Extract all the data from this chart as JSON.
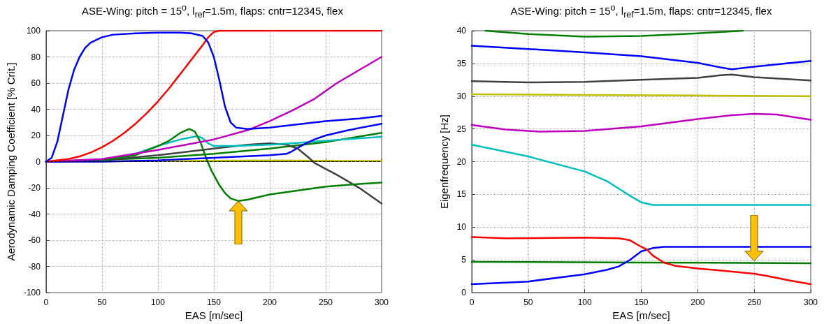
{
  "chart_data": [
    {
      "type": "line",
      "title": "ASE-Wing: pitch = 15$^{o}$, l$_{ref}$=1.5m, flaps: cntr=12345, flex",
      "xlabel": "EAS [m/sec]",
      "ylabel": "Aerodynamic Damping Coefficient [% Crit.]",
      "xlim": [
        0,
        300
      ],
      "xticks": [
        0,
        50,
        100,
        150,
        200,
        250,
        300
      ],
      "ylim": [
        -100,
        100
      ],
      "yticks": [
        -100,
        -80,
        -60,
        -40,
        -20,
        0,
        20,
        40,
        60,
        80,
        100
      ],
      "grid": true,
      "marker": "none",
      "line_style": "solid",
      "ref_lines": [
        {
          "axis": "y",
          "value": 0,
          "color": "#000000",
          "line_style": "dashed"
        }
      ],
      "series": [
        {
          "color": "#0000ff",
          "x": [
            0,
            5,
            10,
            15,
            20,
            25,
            30,
            35,
            40,
            50,
            60,
            80,
            100,
            120,
            130,
            140,
            145,
            150,
            155,
            160,
            165,
            170,
            180,
            200,
            220,
            250,
            280,
            300
          ],
          "values": [
            0,
            3,
            15,
            35,
            55,
            70,
            80,
            87,
            91,
            95,
            97,
            98,
            98.5,
            98.5,
            98,
            96,
            91,
            80,
            62,
            42,
            30,
            26,
            25,
            26,
            28,
            31,
            33,
            35
          ]
        },
        {
          "color": "#ff0000",
          "x": [
            0,
            20,
            30,
            40,
            50,
            60,
            70,
            80,
            90,
            100,
            110,
            120,
            130,
            140,
            145,
            150,
            155,
            200,
            300
          ],
          "values": [
            0,
            2,
            4,
            7,
            11,
            16,
            22,
            29,
            37,
            46,
            56,
            67,
            78,
            89,
            95,
            99,
            100,
            100,
            100
          ]
        },
        {
          "color": "#bf00bf",
          "x": [
            0,
            50,
            100,
            150,
            180,
            200,
            220,
            240,
            260,
            280,
            300
          ],
          "values": [
            0,
            2,
            9,
            17,
            24,
            31,
            39,
            48,
            60,
            70,
            80
          ]
        },
        {
          "color": "#0000ff",
          "x": [
            0,
            50,
            100,
            150,
            200,
            215,
            220,
            230,
            240,
            250,
            270,
            300
          ],
          "values": [
            0,
            0,
            1,
            3,
            5,
            6,
            8,
            13,
            17,
            20,
            24,
            29
          ]
        },
        {
          "color": "#007f00",
          "x": [
            0,
            50,
            80,
            100,
            110,
            120,
            128,
            133,
            138,
            143,
            148,
            155,
            160,
            165,
            172,
            180,
            200,
            250,
            280,
            300
          ],
          "values": [
            0,
            1,
            5,
            12,
            16,
            22,
            25,
            23,
            15,
            3,
            -7,
            -18,
            -24,
            -28,
            -30,
            -29,
            -25,
            -19,
            -17,
            -16
          ]
        },
        {
          "color": "#00bfbf",
          "x": [
            0,
            50,
            80,
            100,
            120,
            135,
            140,
            145,
            150,
            170,
            200,
            220,
            250,
            300
          ],
          "values": [
            0,
            1,
            6,
            12,
            17,
            19.5,
            18,
            14,
            12,
            12,
            13,
            14,
            16,
            19
          ]
        },
        {
          "color": "#404040",
          "x": [
            0,
            50,
            100,
            150,
            180,
            200,
            215,
            225,
            235,
            240,
            260,
            280,
            300
          ],
          "values": [
            0,
            1,
            5,
            10,
            13,
            14,
            13,
            10,
            3,
            -1,
            -10,
            -20,
            -32
          ]
        },
        {
          "color": "#007f00",
          "x": [
            0,
            100,
            150,
            200,
            250,
            300
          ],
          "values": [
            0,
            3,
            6,
            10,
            15,
            22
          ]
        },
        {
          "color": "#bfbf00",
          "x": [
            0,
            100,
            200,
            300
          ],
          "values": [
            0,
            0.5,
            1,
            0.5
          ]
        }
      ]
    },
    {
      "type": "line",
      "title": "ASE-Wing: pitch = 15$^{o}$, l$_{ref}$=1.5m, flaps: cntr=12345, flex",
      "xlabel": "EAS [m/sec]",
      "ylabel": "Eigenfrequency [Hz]",
      "xlim": [
        0,
        300
      ],
      "xticks": [
        0,
        50,
        100,
        150,
        200,
        250,
        300
      ],
      "ylim": [
        0,
        40
      ],
      "yticks": [
        0,
        5,
        10,
        15,
        20,
        25,
        30,
        35,
        40
      ],
      "grid": true,
      "marker": "none",
      "line_style": "solid",
      "series": [
        {
          "color": "#007f00",
          "x": [
            12,
            50,
            100,
            150,
            200,
            240
          ],
          "values": [
            40,
            39.5,
            39.1,
            39.2,
            39.6,
            40
          ]
        },
        {
          "color": "#0000ff",
          "x": [
            0,
            50,
            100,
            150,
            200,
            220,
            230,
            250,
            300
          ],
          "values": [
            37.7,
            37.2,
            36.7,
            36.1,
            35.1,
            34.4,
            34.1,
            34.5,
            35.4
          ]
        },
        {
          "color": "#404040",
          "x": [
            0,
            50,
            100,
            150,
            200,
            220,
            230,
            250,
            300
          ],
          "values": [
            32.3,
            32.1,
            32.2,
            32.5,
            32.8,
            33.2,
            33.3,
            32.9,
            32.4
          ]
        },
        {
          "color": "#bfbf00",
          "x": [
            0,
            100,
            200,
            300
          ],
          "values": [
            30.3,
            30.2,
            30.1,
            30
          ]
        },
        {
          "color": "#bf00bf",
          "x": [
            0,
            30,
            60,
            100,
            150,
            200,
            230,
            250,
            270,
            300
          ],
          "values": [
            25.6,
            24.9,
            24.6,
            24.7,
            25.4,
            26.5,
            27.1,
            27.3,
            27.2,
            26.4
          ]
        },
        {
          "color": "#00bfbf",
          "x": [
            0,
            50,
            100,
            120,
            140,
            150,
            160,
            200,
            300
          ],
          "values": [
            22.6,
            20.8,
            18.5,
            17,
            14.8,
            13.8,
            13.4,
            13.4,
            13.4
          ]
        },
        {
          "color": "#ff0000",
          "x": [
            0,
            30,
            100,
            130,
            140,
            150,
            155,
            160,
            170,
            180,
            200,
            250,
            260,
            280,
            300
          ],
          "values": [
            8.5,
            8.3,
            8.4,
            8.3,
            8,
            7,
            6.6,
            5.7,
            4.6,
            4.1,
            3.7,
            2.9,
            2.6,
            1.9,
            1.3
          ]
        },
        {
          "color": "#0000ff",
          "x": [
            0,
            50,
            100,
            120,
            130,
            140,
            150,
            160,
            170,
            300
          ],
          "values": [
            1.3,
            1.7,
            2.8,
            3.5,
            4,
            5,
            6.3,
            6.8,
            7,
            7
          ]
        },
        {
          "color": "#007f00",
          "x": [
            0,
            150,
            300
          ],
          "values": [
            4.7,
            4.6,
            4.5
          ]
        }
      ]
    }
  ]
}
